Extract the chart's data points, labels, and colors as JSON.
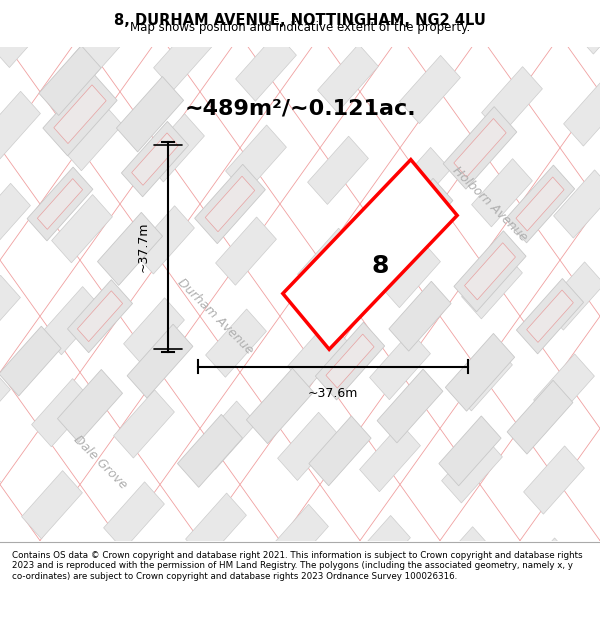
{
  "title_line1": "8, DURHAM AVENUE, NOTTINGHAM, NG2 4LU",
  "title_line2": "Map shows position and indicative extent of the property.",
  "area_text": "~489m²/~0.121ac.",
  "label_number": "8",
  "dim_horizontal": "~37.6m",
  "dim_vertical": "~37.7m",
  "street_label_durham": "Durham Avenue",
  "street_label_holborn": "Holborn Avenue",
  "street_label_dale": "Dale Grove",
  "footer_text": "Contains OS data © Crown copyright and database right 2021. This information is subject to Crown copyright and database rights 2023 and is reproduced with the permission of HM Land Registry. The polygons (including the associated geometry, namely x, y co-ordinates) are subject to Crown copyright and database rights 2023 Ordnance Survey 100026316.",
  "bg_color": "#f0eeee",
  "map_bg": "#f0eeee",
  "plot_fill": "#ffffff",
  "plot_edge": "#ff0000",
  "block_fill": "#e8e8e8",
  "block_edge": "#cccccc",
  "road_color": "#ffffff",
  "road_edge": "#dddddd",
  "pink_line": "#f0a0a0",
  "gray_label": "#b0b0b0"
}
